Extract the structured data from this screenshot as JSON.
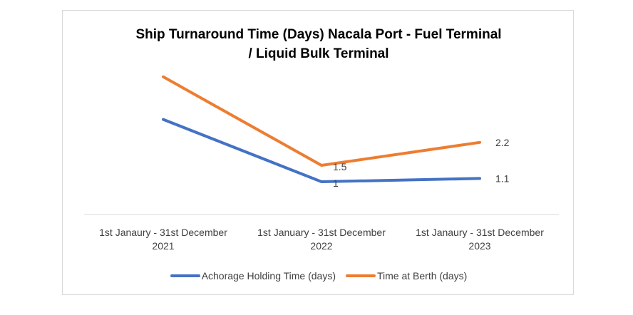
{
  "chart_data": {
    "type": "line",
    "title": [
      "Ship Turnaround Time (Days) Nacala Port - Fuel Terminal",
      "/ Liquid Bulk Terminal"
    ],
    "categories": [
      [
        "1st Janaury - 31st December",
        "2021"
      ],
      [
        "1st January - 31st December",
        "2022"
      ],
      [
        "1st Janaury - 31st December",
        "2023"
      ]
    ],
    "series": [
      {
        "name": "Achorage Holding Time (days)",
        "values": [
          2.9,
          1,
          1.1
        ],
        "labels": [
          "",
          "1",
          "1.1"
        ],
        "color": "#4472c4"
      },
      {
        "name": "Time at Berth (days)",
        "values": [
          4.2,
          1.5,
          2.2
        ],
        "labels": [
          "",
          "1.5",
          "2.2"
        ],
        "color": "#ed7d31"
      }
    ],
    "ylim": [
      0,
      5
    ],
    "grid": false,
    "legend_position": "bottom"
  }
}
